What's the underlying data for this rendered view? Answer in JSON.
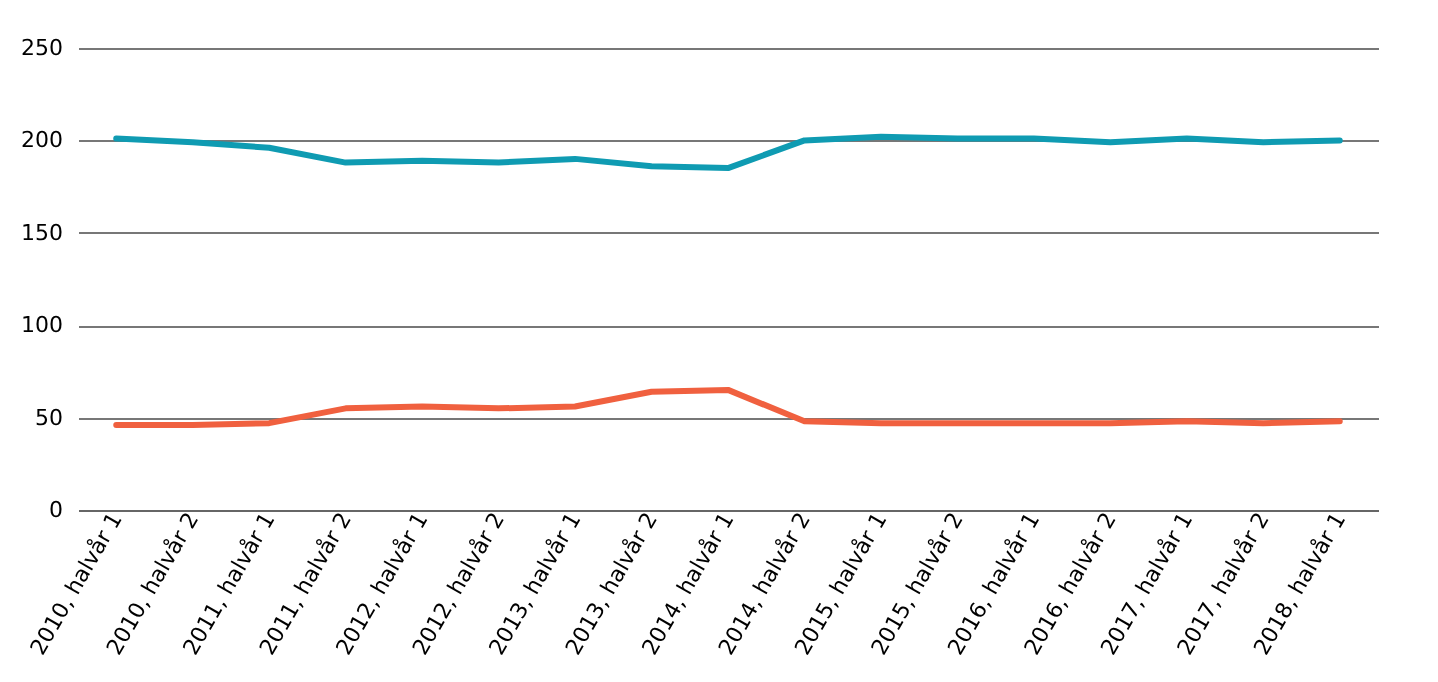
{
  "chart_data": {
    "type": "line",
    "categories": [
      "2010, halvår 1",
      "2010, halvår 2",
      "2011, halvår 1",
      "2011, halvår 2",
      "2012, halvår 1",
      "2012, halvår 2",
      "2013, halvår 1",
      "2013, halvår 2",
      "2014, halvår 1",
      "2014, halvår 2",
      "2015, halvår 1",
      "2015, halvår 2",
      "2016, halvår 1",
      "2016, halvår 2",
      "2017, halvår 1",
      "2017, halvår 2",
      "2018, halvår 1"
    ],
    "series": [
      {
        "color": "#0f9bb2",
        "values": [
          201,
          199,
          196,
          188,
          189,
          188,
          190,
          186,
          185,
          200,
          202,
          201,
          201,
          199,
          201,
          199,
          200
        ]
      },
      {
        "color": "#f0603f",
        "values": [
          46,
          46,
          47,
          55,
          56,
          55,
          56,
          64,
          65,
          48,
          47,
          47,
          47,
          47,
          48,
          47,
          48
        ]
      }
    ],
    "ylim": [
      0,
      250
    ],
    "yticks": [
      0,
      50,
      100,
      150,
      200,
      250
    ],
    "grid": "y"
  }
}
